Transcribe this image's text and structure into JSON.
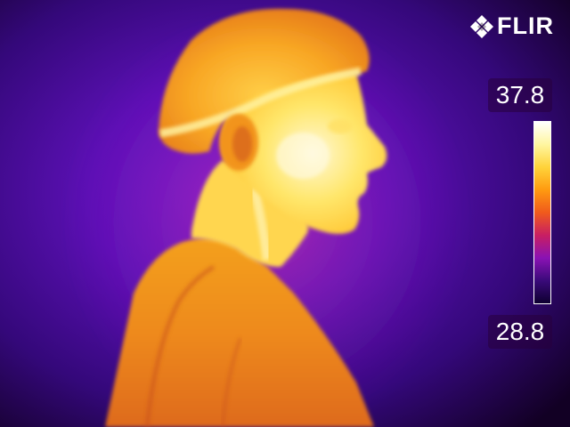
{
  "brand": {
    "name": "FLIR",
    "logo_icon": "flir-diamond-icon"
  },
  "temperature_scale": {
    "max": "37.8",
    "min": "28.8",
    "palette": "iron",
    "colors": [
      "#ffffff",
      "#fff6a0",
      "#ffd33a",
      "#ff9a10",
      "#f05a1c",
      "#c81e63",
      "#8a12b4",
      "#3a0a7a",
      "#0e0030"
    ]
  },
  "scene": {
    "subject": "thermal-profile-portrait",
    "background_color": "#4a0ea0"
  }
}
